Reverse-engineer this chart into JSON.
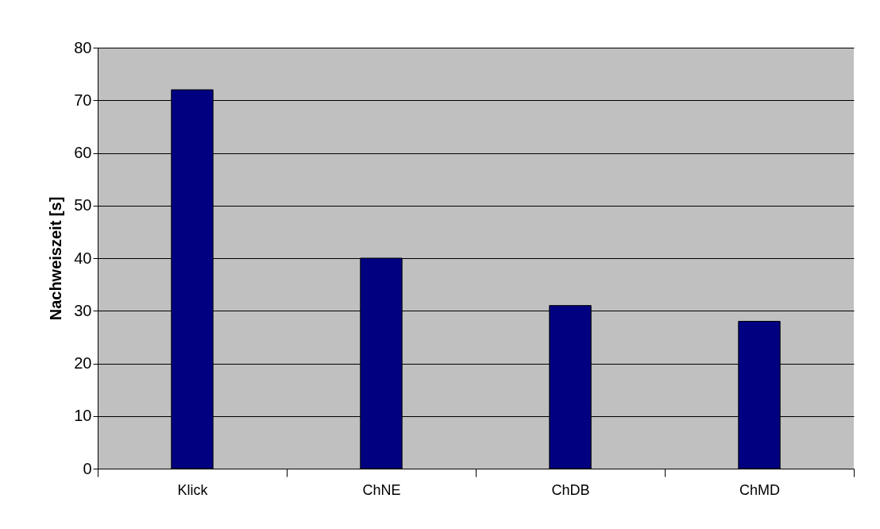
{
  "chart_data": {
    "type": "bar",
    "ylabel": "Nachweiszeit [s]",
    "categories": [
      "Klick",
      "ChNE",
      "ChDB",
      "ChMD"
    ],
    "values": [
      72,
      40,
      31,
      28
    ],
    "color": "#000080",
    "ylim": [
      0,
      80
    ],
    "yticks": [
      0,
      10,
      20,
      30,
      40,
      50,
      60,
      70,
      80
    ],
    "grid": "y"
  }
}
